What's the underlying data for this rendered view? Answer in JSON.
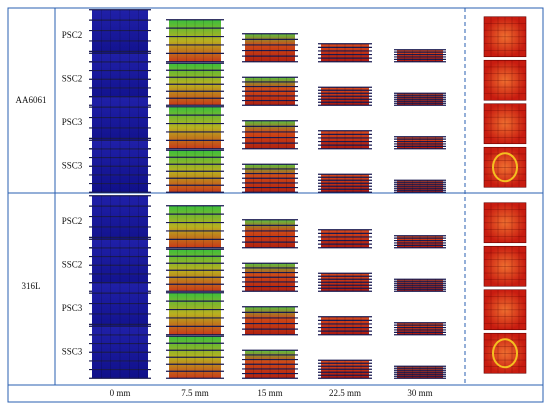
{
  "groups": [
    {
      "label": "AA6061",
      "rows": [
        "PSC2",
        "SSC2",
        "PSC3",
        "SSC3"
      ]
    },
    {
      "label": "316L",
      "rows": [
        "PSC2",
        "SSC2",
        "PSC3",
        "SSC3"
      ]
    }
  ],
  "columns": [
    "0 mm",
    "7.5 mm",
    "15 mm",
    "22.5 mm",
    "30 mm"
  ]
}
